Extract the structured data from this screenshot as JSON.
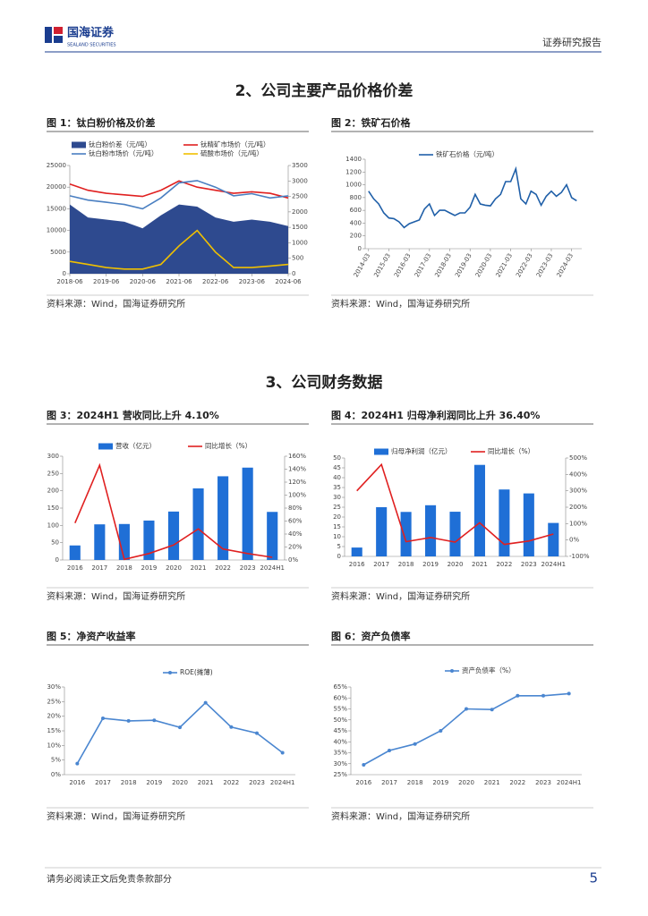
{
  "header": {
    "logo_cn": "国海证券",
    "logo_en": "SEALAND SECURITIES",
    "report_type": "证券研究报告"
  },
  "sections": [
    "2、公司主要产品价格价差",
    "3、公司财务数据"
  ],
  "figures": [
    {
      "title": "图 1：钛白粉价格及价差",
      "source": "资料来源：Wind，国海证券研究所"
    },
    {
      "title": "图 2：铁矿石价格",
      "source": "资料来源：Wind，国海证券研究所"
    },
    {
      "title": "图 3：2024H1 营收同比上升 4.10%",
      "source": "资料来源：Wind，国海证券研究所"
    },
    {
      "title": "图 4：2024H1 归母净利润同比上升 36.40%",
      "source": "资料来源：Wind，国海证券研究所"
    },
    {
      "title": "图 5：净资产收益率",
      "source": "资料来源：Wind，国海证券研究所"
    },
    {
      "title": "图 6：资产负债率",
      "source": "资料来源：Wind，国海证券研究所"
    }
  ],
  "chart_data": [
    {
      "type": "combo",
      "x": [
        "2018-06",
        "2018-12",
        "2019-06",
        "2019-12",
        "2020-06",
        "2020-12",
        "2021-06",
        "2021-12",
        "2022-06",
        "2022-12",
        "2023-06",
        "2023-12",
        "2024-06"
      ],
      "xlim": [
        "2018-06",
        "2024-06"
      ],
      "xticks": [
        "2018-06",
        "2019-06",
        "2020-06",
        "2021-06",
        "2022-06",
        "2023-06",
        "2024-06"
      ],
      "ylim": [
        0,
        25000
      ],
      "yticks": [
        0,
        5000,
        10000,
        15000,
        20000,
        25000
      ],
      "y2lim": [
        0,
        3500
      ],
      "y2ticks": [
        0,
        500,
        1000,
        1500,
        2000,
        2500,
        3000,
        3500
      ],
      "series": [
        {
          "name": "钛白粉价差（元/吨）",
          "kind": "area",
          "color": "#2e4a8f",
          "values": [
            16000,
            13000,
            12500,
            12000,
            10500,
            13500,
            16000,
            15500,
            13000,
            12000,
            12500,
            12000,
            11000
          ]
        },
        {
          "name": "钛精矿市场价（元/吨）",
          "kind": "line",
          "axis": "y2",
          "color": "#e02020",
          "values": [
            2900,
            2700,
            2600,
            2550,
            2500,
            2700,
            3000,
            2800,
            2700,
            2600,
            2650,
            2600,
            2450
          ]
        },
        {
          "name": "钛白粉市场价（元/吨）",
          "kind": "line",
          "color": "#4a7fc1",
          "values": [
            18000,
            17000,
            16500,
            16000,
            15000,
            17500,
            21000,
            21500,
            20000,
            18000,
            18500,
            17500,
            18000
          ]
        },
        {
          "name": "硫酸市场价（元/吨）",
          "kind": "line",
          "axis": "y2",
          "color": "#f0c000",
          "values": [
            400,
            300,
            200,
            150,
            150,
            300,
            900,
            1400,
            700,
            200,
            200,
            250,
            300
          ]
        }
      ]
    },
    {
      "type": "line",
      "x": [
        "2014-03",
        "2014-06",
        "2014-09",
        "2014-12",
        "2015-03",
        "2015-06",
        "2015-09",
        "2015-12",
        "2016-03",
        "2016-06",
        "2016-09",
        "2016-12",
        "2017-03",
        "2017-06",
        "2017-09",
        "2017-12",
        "2018-03",
        "2018-06",
        "2018-09",
        "2018-12",
        "2019-03",
        "2019-06",
        "2019-09",
        "2019-12",
        "2020-03",
        "2020-06",
        "2020-09",
        "2020-12",
        "2021-03",
        "2021-06",
        "2021-09",
        "2021-12",
        "2022-03",
        "2022-06",
        "2022-09",
        "2022-12",
        "2023-03",
        "2023-06",
        "2023-09",
        "2023-12",
        "2024-03",
        "2024-06"
      ],
      "xlim": [
        "2014-01",
        "2024-09"
      ],
      "xticks": [
        "2014-03",
        "2015-03",
        "2016-03",
        "2017-03",
        "2018-03",
        "2019-03",
        "2020-03",
        "2021-03",
        "2022-03",
        "2023-03",
        "2024-03"
      ],
      "ylim": [
        0,
        1400
      ],
      "yticks": [
        0,
        200,
        400,
        600,
        800,
        1000,
        1200,
        1400
      ],
      "series": [
        {
          "name": "铁矿石价格（元/吨）",
          "kind": "line",
          "color": "#1f5fa8",
          "values": [
            900,
            780,
            700,
            560,
            480,
            470,
            420,
            330,
            390,
            420,
            450,
            620,
            700,
            520,
            600,
            600,
            560,
            520,
            560,
            560,
            650,
            850,
            700,
            680,
            670,
            780,
            850,
            1050,
            1050,
            1250,
            780,
            700,
            900,
            850,
            680,
            820,
            900,
            820,
            880,
            1000,
            800,
            750
          ]
        }
      ]
    },
    {
      "type": "combo",
      "categories": [
        "2016",
        "2017",
        "2018",
        "2019",
        "2020",
        "2021",
        "2022",
        "2023",
        "2024H1"
      ],
      "ylim": [
        0,
        300
      ],
      "yticks": [
        0,
        50,
        100,
        150,
        200,
        250,
        300
      ],
      "y2lim": [
        0,
        160
      ],
      "y2ticks": [
        {
          "value": 0,
          "label": "0%"
        },
        {
          "value": 20,
          "label": "20%"
        },
        {
          "value": 40,
          "label": "40%"
        },
        {
          "value": 60,
          "label": "60%"
        },
        {
          "value": 80,
          "label": "80%"
        },
        {
          "value": 100,
          "label": "100%"
        },
        {
          "value": 120,
          "label": "120%"
        },
        {
          "value": 140,
          "label": "140%"
        },
        {
          "value": 160,
          "label": "160%"
        }
      ],
      "series": [
        {
          "name": "营收（亿元）",
          "kind": "bar",
          "color": "#1f6fd6",
          "values": [
            42,
            103,
            104,
            114,
            140,
            207,
            242,
            267,
            139
          ]
        },
        {
          "name": "同比增长（%）",
          "kind": "line",
          "axis": "y2",
          "color": "#e02020",
          "values": [
            57,
            146,
            1,
            10,
            23,
            48,
            17,
            10,
            4.1
          ]
        }
      ]
    },
    {
      "type": "combo",
      "categories": [
        "2016",
        "2017",
        "2018",
        "2019",
        "2020",
        "2021",
        "2022",
        "2023",
        "2024H1"
      ],
      "ylim": [
        0,
        50
      ],
      "yticks": [
        0,
        5,
        10,
        15,
        20,
        25,
        30,
        35,
        40,
        45,
        50
      ],
      "y2lim": [
        -100,
        500
      ],
      "y2ticks": [
        {
          "value": -100,
          "label": "-100%"
        },
        {
          "value": 0,
          "label": "0%"
        },
        {
          "value": 100,
          "label": "100%"
        },
        {
          "value": 200,
          "label": "200%"
        },
        {
          "value": 300,
          "label": "300%"
        },
        {
          "value": 400,
          "label": "400%"
        },
        {
          "value": 500,
          "label": "500%"
        }
      ],
      "series": [
        {
          "name": "归母净利润（亿元）",
          "kind": "bar",
          "color": "#1f6fd6",
          "values": [
            4.5,
            25,
            22.6,
            26,
            22.7,
            46.5,
            34,
            32,
            17
          ]
        },
        {
          "name": "同比增长（%）",
          "kind": "line",
          "axis": "y2",
          "color": "#e02020",
          "values": [
            300,
            460,
            -10,
            15,
            -13,
            105,
            -27,
            -6,
            36.4
          ]
        }
      ]
    },
    {
      "type": "line",
      "categories": [
        "2016",
        "2017",
        "2018",
        "2019",
        "2020",
        "2021",
        "2022",
        "2023",
        "2024H1"
      ],
      "ylim": [
        0,
        30
      ],
      "yticks": [
        {
          "value": 0,
          "label": "0%"
        },
        {
          "value": 5,
          "label": "5%"
        },
        {
          "value": 10,
          "label": "10%"
        },
        {
          "value": 15,
          "label": "15%"
        },
        {
          "value": 20,
          "label": "20%"
        },
        {
          "value": 25,
          "label": "25%"
        },
        {
          "value": 30,
          "label": "30%"
        }
      ],
      "series": [
        {
          "name": "ROE(摊薄)",
          "kind": "line",
          "marker": true,
          "color": "#4a86d0",
          "values": [
            3.8,
            19.3,
            18.4,
            18.6,
            16.2,
            24.6,
            16.3,
            14.2,
            7.5
          ]
        }
      ]
    },
    {
      "type": "line",
      "categories": [
        "2016",
        "2017",
        "2018",
        "2019",
        "2020",
        "2021",
        "2022",
        "2023",
        "2024H1"
      ],
      "ylim": [
        25,
        65
      ],
      "yticks": [
        {
          "value": 25,
          "label": "25%"
        },
        {
          "value": 30,
          "label": "30%"
        },
        {
          "value": 35,
          "label": "35%"
        },
        {
          "value": 40,
          "label": "40%"
        },
        {
          "value": 45,
          "label": "45%"
        },
        {
          "value": 50,
          "label": "50%"
        },
        {
          "value": 55,
          "label": "55%"
        },
        {
          "value": 60,
          "label": "60%"
        },
        {
          "value": 65,
          "label": "65%"
        }
      ],
      "series": [
        {
          "name": "资产负债率（%）",
          "kind": "line",
          "marker": true,
          "color": "#4a86d0",
          "values": [
            29.5,
            36,
            39,
            45,
            55,
            54.7,
            61,
            61,
            62
          ]
        }
      ]
    }
  ],
  "footer": {
    "disclaimer": "请务必阅读正文后免责条款部分",
    "page": 5
  }
}
